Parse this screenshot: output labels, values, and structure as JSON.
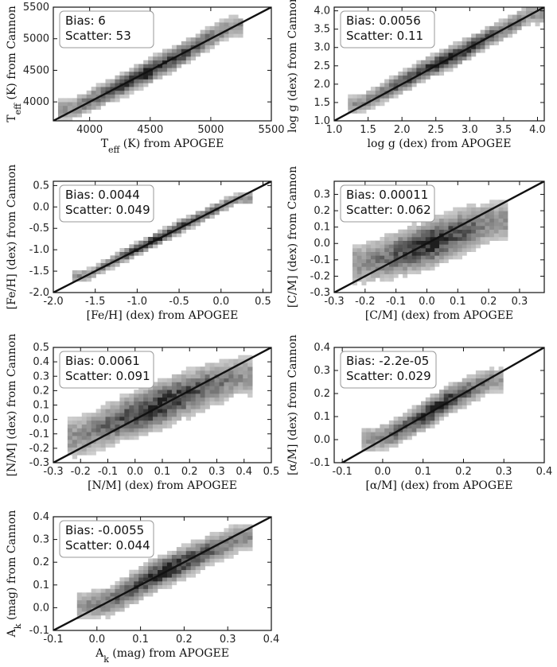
{
  "chart_data": [
    {
      "type": "heatmap",
      "xlabel": "T_eff (K) from APOGEE",
      "ylabel": "T_eff (K) from Cannon",
      "xlim": [
        3700,
        5500
      ],
      "ylim": [
        3700,
        5500
      ],
      "xticks": [
        4000,
        4500,
        5000,
        5500
      ],
      "yticks": [
        4000,
        4500,
        5000,
        5500
      ],
      "annotations": [
        "Bias: 6",
        "Scatter: 53"
      ],
      "ridge": [
        [
          3850,
          3880
        ],
        [
          4100,
          4110
        ],
        [
          4400,
          4390
        ],
        [
          4650,
          4640
        ],
        [
          4800,
          4790
        ],
        [
          5000,
          5020
        ],
        [
          5150,
          5190
        ]
      ],
      "spread": 110,
      "one_to_one_line": true
    },
    {
      "type": "heatmap",
      "xlabel": "log g (dex) from APOGEE",
      "ylabel": "log g (dex) from Cannon",
      "xlim": [
        1.0,
        4.1
      ],
      "ylim": [
        1.0,
        4.1
      ],
      "xticks": [
        "1.0",
        "1.5",
        "2.0",
        "2.5",
        "3.0",
        "3.5",
        "4.0"
      ],
      "yticks": [
        "1.0",
        "1.5",
        "2.0",
        "2.5",
        "3.0",
        "3.5",
        "4.0"
      ],
      "annotations": [
        "Bias: 0.0056",
        "Scatter: 0.11"
      ],
      "ridge": [
        [
          1.4,
          1.45
        ],
        [
          1.9,
          1.95
        ],
        [
          2.4,
          2.45
        ],
        [
          2.8,
          2.8
        ],
        [
          3.2,
          3.2
        ],
        [
          3.6,
          3.6
        ],
        [
          3.9,
          3.9
        ]
      ],
      "spread": 0.17,
      "one_to_one_line": true
    },
    {
      "type": "heatmap",
      "xlabel": "[Fe/H] (dex) from APOGEE",
      "ylabel": "[Fe/H] (dex) from Cannon",
      "xlim": [
        -2.0,
        0.6
      ],
      "ylim": [
        -2.0,
        0.6
      ],
      "xticks": [
        "-2.0",
        "-1.5",
        "-1.0",
        "-0.5",
        "0.0",
        "0.5"
      ],
      "yticks": [
        "-2.0",
        "-1.5",
        "-1.0",
        "-0.5",
        "0.0",
        "0.5"
      ],
      "annotations": [
        "Bias: 0.0044",
        "Scatter: 0.049"
      ],
      "ridge": [
        [
          -1.6,
          -1.6
        ],
        [
          -1.3,
          -1.28
        ],
        [
          -1.0,
          -0.98
        ],
        [
          -0.6,
          -0.58
        ],
        [
          -0.3,
          -0.28
        ],
        [
          -0.1,
          -0.08
        ],
        [
          0.2,
          0.2
        ]
      ],
      "spread": 0.09,
      "one_to_one_line": true
    },
    {
      "type": "heatmap",
      "xlabel": "[C/M] (dex) from APOGEE",
      "ylabel": "[C/M] (dex) from Cannon",
      "xlim": [
        -0.3,
        0.38
      ],
      "ylim": [
        -0.3,
        0.38
      ],
      "xticks": [
        "-0.3",
        "-0.2",
        "-0.1",
        "0.0",
        "0.1",
        "0.2",
        "0.3"
      ],
      "yticks": [
        "-0.3",
        "-0.2",
        "-0.1",
        "0.0",
        "0.1",
        "0.2",
        "0.3"
      ],
      "annotations": [
        "Bias: 0.00011",
        "Scatter: 0.062"
      ],
      "ridge": [
        [
          -0.2,
          -0.12
        ],
        [
          -0.1,
          -0.07
        ],
        [
          0.0,
          -0.01
        ],
        [
          0.08,
          0.05
        ],
        [
          0.15,
          0.1
        ],
        [
          0.22,
          0.14
        ]
      ],
      "spread": 0.08,
      "one_to_one_line": true
    },
    {
      "type": "heatmap",
      "xlabel": "[N/M] (dex) from APOGEE",
      "ylabel": "[N/M] (dex) from Cannon",
      "xlim": [
        -0.3,
        0.5
      ],
      "ylim": [
        -0.3,
        0.5
      ],
      "xticks": [
        "-0.3",
        "-0.2",
        "-0.1",
        "0.0",
        "0.1",
        "0.2",
        "0.3",
        "0.4",
        "0.5"
      ],
      "yticks": [
        "-0.3",
        "-0.2",
        "-0.1",
        "0.0",
        "0.1",
        "0.2",
        "0.3",
        "0.4",
        "0.5"
      ],
      "annotations": [
        "Bias: 0.0061",
        "Scatter: 0.091"
      ],
      "ridge": [
        [
          -0.2,
          -0.12
        ],
        [
          -0.05,
          0.0
        ],
        [
          0.08,
          0.09
        ],
        [
          0.18,
          0.17
        ],
        [
          0.28,
          0.24
        ],
        [
          0.38,
          0.3
        ]
      ],
      "spread": 0.09,
      "one_to_one_line": true
    },
    {
      "type": "heatmap",
      "xlabel": "[α/M] (dex) from APOGEE",
      "ylabel": "[α/M] (dex) from Cannon",
      "xlim": [
        -0.12,
        0.4
      ],
      "ylim": [
        -0.1,
        0.4
      ],
      "xticks": [
        "-0.1",
        "0.0",
        "0.1",
        "0.2",
        "0.3",
        "0.4"
      ],
      "yticks": [
        "-0.1",
        "0.0",
        "0.1",
        "0.2",
        "0.3",
        "0.4"
      ],
      "annotations": [
        "Bias: -2.2e-05",
        "Scatter: 0.029"
      ],
      "ridge": [
        [
          -0.02,
          0.0
        ],
        [
          0.03,
          0.03
        ],
        [
          0.06,
          0.06
        ],
        [
          0.1,
          0.1
        ],
        [
          0.16,
          0.17
        ],
        [
          0.22,
          0.22
        ],
        [
          0.27,
          0.26
        ]
      ],
      "spread": 0.035,
      "one_to_one_line": true
    },
    {
      "type": "heatmap",
      "xlabel": "A_k (mag) from APOGEE",
      "ylabel": "A_k (mag) from Cannon",
      "xlim": [
        -0.1,
        0.4
      ],
      "ylim": [
        -0.1,
        0.4
      ],
      "xticks": [
        "-0.1",
        "0.0",
        "0.1",
        "0.2",
        "0.3",
        "0.4"
      ],
      "yticks": [
        "-0.1",
        "0.0",
        "0.1",
        "0.2",
        "0.3",
        "0.4"
      ],
      "annotations": [
        "Bias: -0.0055",
        "Scatter: 0.044"
      ],
      "ridge": [
        [
          -0.02,
          0.01
        ],
        [
          0.03,
          0.03
        ],
        [
          0.06,
          0.06
        ],
        [
          0.12,
          0.13
        ],
        [
          0.2,
          0.2
        ],
        [
          0.28,
          0.27
        ],
        [
          0.33,
          0.31
        ]
      ],
      "spread": 0.04,
      "one_to_one_line": true
    }
  ]
}
